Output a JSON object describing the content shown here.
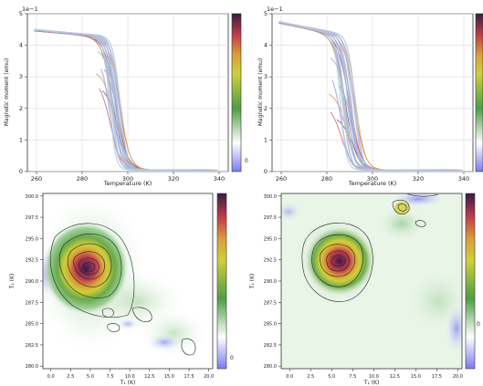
{
  "chart_data": [
    {
      "type": "line",
      "panel": "top-left",
      "xlabel": "Temperature (K)",
      "ylabel": "Magnetic moment (emu)",
      "y_scale_label": "1e−1",
      "xlim": [
        256,
        344
      ],
      "ylim": [
        0,
        5
      ],
      "xticks": [
        "260",
        "280",
        "300",
        "320",
        "340"
      ],
      "yticks": [
        "0",
        "1",
        "2",
        "3",
        "4",
        "5"
      ],
      "colorbar_ticks": [
        "0"
      ],
      "curve_family": {
        "count": 22,
        "upper_start": 4.5,
        "lower_start_min": 2.0,
        "transition_T": [
          292,
          297
        ],
        "low_level": 0.05,
        "x_start": 259,
        "x_end_min": 312,
        "x_end_max": 341
      }
    },
    {
      "type": "line",
      "panel": "top-right",
      "xlabel": "Temperature (K)",
      "ylabel": "Magnetic moment (emu)",
      "y_scale_label": "1e−1",
      "xlim": [
        256,
        344
      ],
      "ylim": [
        0,
        5
      ],
      "xticks": [
        "260",
        "280",
        "300",
        "320",
        "340"
      ],
      "yticks": [
        "0",
        "1",
        "2",
        "3",
        "4",
        "5"
      ],
      "colorbar_ticks": [
        "0"
      ],
      "curve_family": {
        "count": 22,
        "upper_start": 4.75,
        "lower_start_min": 0.6,
        "transition_T": [
          286,
          293
        ],
        "low_level": 0.05,
        "x_start": 259,
        "x_end_min": 312,
        "x_end_max": 341
      }
    },
    {
      "type": "heatmap",
      "panel": "bottom-left",
      "xlabel": "T₁ (K)",
      "ylabel": "T₂ (K)",
      "xlim": [
        -1,
        20.5
      ],
      "ylim": [
        279.7,
        300.3
      ],
      "xticks": [
        "0.0",
        "2.5",
        "5.0",
        "7.5",
        "10.0",
        "12.5",
        "15.0",
        "17.5",
        "20.0"
      ],
      "yticks": [
        "280.0",
        "282.5",
        "285.0",
        "287.5",
        "290.0",
        "292.5",
        "295.0",
        "297.5",
        "300.0"
      ],
      "colorbar_ticks": [
        "0"
      ],
      "peak": {
        "x": 4.2,
        "y": 291.6
      }
    },
    {
      "type": "heatmap",
      "panel": "bottom-right",
      "xlabel": "T₁ (K)",
      "ylabel": "T₂ (K)",
      "xlim": [
        -1,
        20.5
      ],
      "ylim": [
        279.7,
        300.3
      ],
      "xticks": [
        "0.0",
        "2.5",
        "5.0",
        "7.5",
        "10.0",
        "12.5",
        "15.0",
        "17.5",
        "20.0"
      ],
      "yticks": [
        "280.0",
        "282.5",
        "285.0",
        "287.5",
        "290.0",
        "292.5",
        "295.0",
        "297.5",
        "300.0"
      ],
      "colorbar_ticks": [
        "0"
      ],
      "peak": {
        "x": 4.8,
        "y": 292.1
      }
    }
  ],
  "colormap": [
    "#7b7bf0",
    "#ffffff",
    "#4e9e45",
    "#cfcf3a",
    "#d99e3a",
    "#c23f4a",
    "#3a1b45"
  ]
}
